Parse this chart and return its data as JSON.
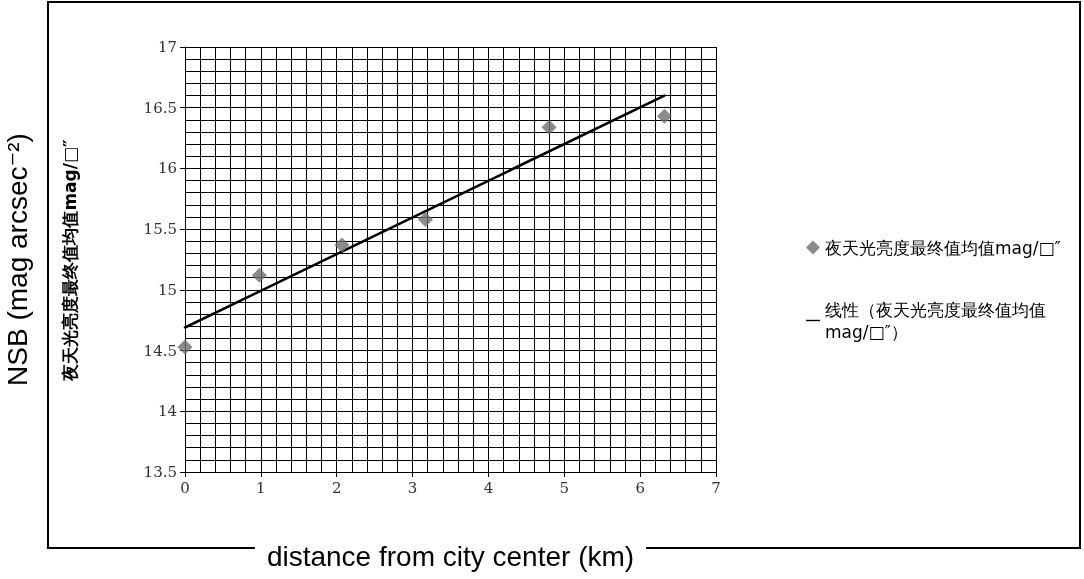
{
  "chart_data": {
    "type": "scatter",
    "xlabel": "distance from city center (km)",
    "ylabel": "NSB (mag arcsec⁻²)",
    "annotations": [
      "夜天光亮度最终值均值mag/□″"
    ],
    "series": [
      {
        "name": "夜天光亮度最终值均值mag/□″",
        "color": "#6e6e6e",
        "marker": "diamond",
        "x": [
          0,
          0.98,
          2.07,
          3.17,
          4.8,
          6.32
        ],
        "values": [
          14.53,
          15.12,
          15.37,
          15.58,
          16.34,
          16.43
        ]
      },
      {
        "name": "线性（夜天光亮度最终值均值mag/□″）",
        "type": "line",
        "color": "#000000",
        "marker": "none",
        "line_style": "solid",
        "x": [
          0,
          6.32
        ],
        "values": [
          14.69,
          16.6
        ]
      }
    ],
    "xlim": [
      0,
      7
    ],
    "xticks": [
      0,
      1,
      2,
      3,
      4,
      5,
      6,
      7
    ],
    "ylim": [
      13.5,
      17
    ],
    "yticks": [
      13.5,
      14,
      14.5,
      15,
      15.5,
      16,
      16.5,
      17
    ],
    "grid": true,
    "legend": "right"
  }
}
